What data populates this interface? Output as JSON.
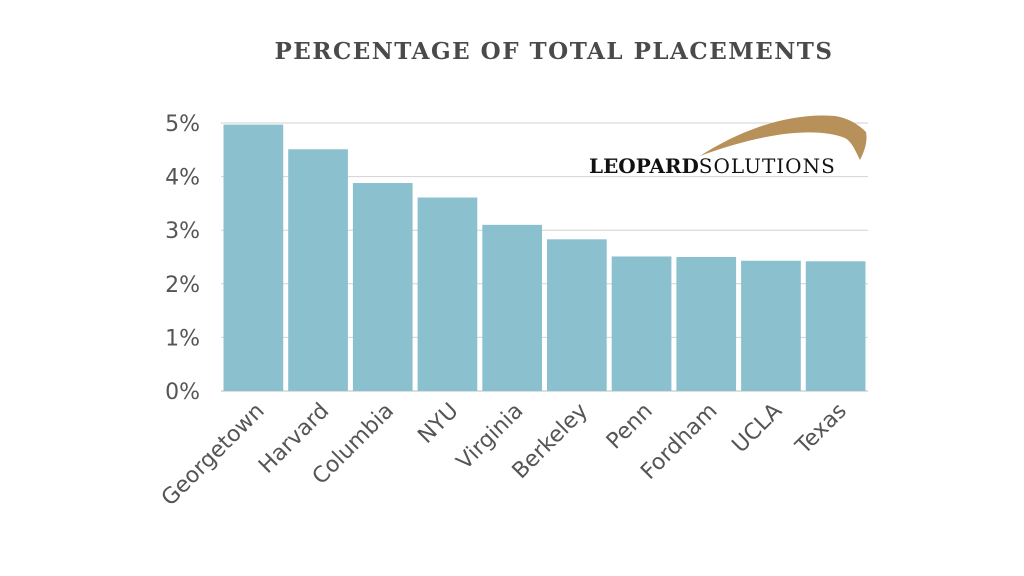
{
  "chart_data": {
    "type": "bar",
    "title": "PERCENTAGE OF TOTAL PLACEMENTS",
    "categories": [
      "Georgetown",
      "Harvard",
      "Columbia",
      "NYU",
      "Virginia",
      "Berkeley",
      "Penn",
      "Fordham",
      "UCLA",
      "Texas"
    ],
    "values": [
      4.97,
      4.51,
      3.88,
      3.61,
      3.1,
      2.83,
      2.51,
      2.5,
      2.43,
      2.42
    ],
    "ylim": [
      0,
      5
    ],
    "yticks": [
      "0%",
      "1%",
      "2%",
      "3%",
      "4%",
      "5%"
    ],
    "grid": true,
    "bar_color": "#8bc1cf"
  },
  "logo": {
    "bold": "LEOPARD",
    "light": "SOLUTIONS",
    "accent_color": "#b8905a"
  }
}
